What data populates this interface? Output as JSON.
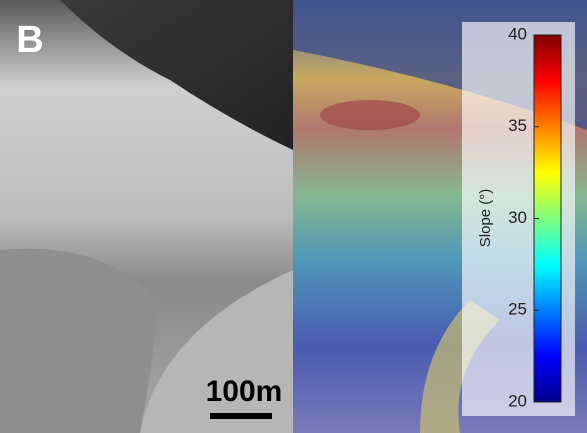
{
  "panel_label": "B",
  "scale_bar": "100m",
  "colorbar": {
    "label": "Slope (°)",
    "lim": [
      20,
      40
    ],
    "ticks": [
      20,
      25,
      30,
      35,
      40
    ]
  }
}
